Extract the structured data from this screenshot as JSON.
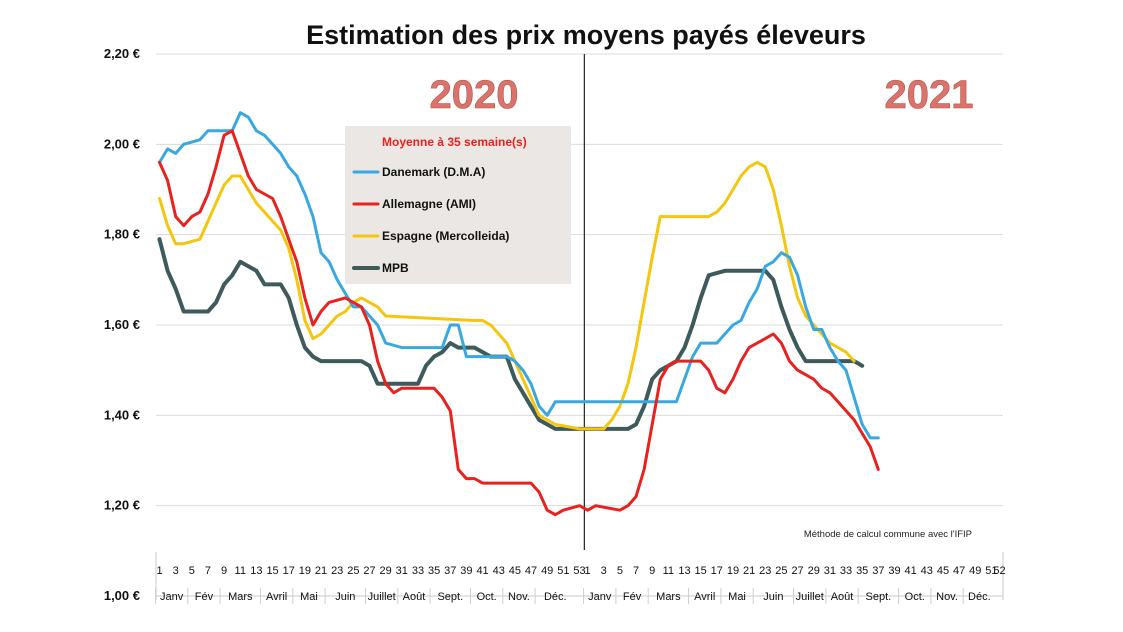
{
  "chart_data": {
    "type": "line",
    "title": "Estimation des prix moyens payés éleveurs",
    "year_labels": [
      "2020",
      "2021"
    ],
    "note": "Méthode de calcul commune avec l'IFIP",
    "legend": {
      "title": "Moyenne à  35 semaine(s)",
      "placement": "upper-left-center"
    },
    "y_ticks": [
      "1,00 €",
      "1,20 €",
      "1,40 €",
      "1,60 €",
      "1,80 €",
      "2,00 €",
      "2,20 €"
    ],
    "ylim": [
      1.0,
      2.2
    ],
    "grid": true,
    "week_ticks_2020": [
      "1",
      "3",
      "5",
      "7",
      "9",
      "11",
      "13",
      "15",
      "17",
      "19",
      "21",
      "23",
      "25",
      "27",
      "29",
      "31",
      "33",
      "35",
      "37",
      "39",
      "41",
      "43",
      "45",
      "47",
      "49",
      "51",
      "53"
    ],
    "week_ticks_2021": [
      "1",
      "3",
      "5",
      "7",
      "9",
      "11",
      "13",
      "15",
      "17",
      "19",
      "21",
      "23",
      "25",
      "27",
      "29",
      "31",
      "33",
      "35",
      "37",
      "39",
      "41",
      "43",
      "45",
      "47",
      "49",
      "51",
      "52"
    ],
    "months_2020": [
      "Janv",
      "Fév",
      "Mars",
      "Avril",
      "Mai",
      "Juin",
      "Juillet",
      "Août",
      "Sept.",
      "Oct.",
      "Nov.",
      "Déc."
    ],
    "months_2021": [
      "Janv",
      "Fév",
      "Mars",
      "Avril",
      "Mai",
      "Juin",
      "Juillet",
      "Août",
      "Sept.",
      "Oct.",
      "Nov.",
      "Déc."
    ],
    "x_unit": "week (2020 weeks 1–53, then 2021 weeks 1–52)",
    "series": [
      {
        "name": "Danemark (D.M.A)",
        "color": "#3aa8e0",
        "points": [
          [
            1,
            1.96
          ],
          [
            2,
            1.99
          ],
          [
            3,
            1.98
          ],
          [
            4,
            2.0
          ],
          [
            6,
            2.01
          ],
          [
            7,
            2.03
          ],
          [
            10,
            2.03
          ],
          [
            11,
            2.07
          ],
          [
            12,
            2.06
          ],
          [
            13,
            2.03
          ],
          [
            14,
            2.02
          ],
          [
            15,
            2.0
          ],
          [
            16,
            1.98
          ],
          [
            17,
            1.95
          ],
          [
            18,
            1.93
          ],
          [
            19,
            1.89
          ],
          [
            20,
            1.84
          ],
          [
            21,
            1.76
          ],
          [
            22,
            1.74
          ],
          [
            23,
            1.7
          ],
          [
            24,
            1.67
          ],
          [
            25,
            1.64
          ],
          [
            26,
            1.64
          ],
          [
            27,
            1.62
          ],
          [
            28,
            1.6
          ],
          [
            29,
            1.56
          ],
          [
            31,
            1.55
          ],
          [
            36,
            1.55
          ],
          [
            37,
            1.6
          ],
          [
            38,
            1.6
          ],
          [
            39,
            1.53
          ],
          [
            44,
            1.53
          ],
          [
            45,
            1.52
          ],
          [
            46,
            1.5
          ],
          [
            47,
            1.47
          ],
          [
            48,
            1.42
          ],
          [
            49,
            1.4
          ],
          [
            50,
            1.43
          ],
          [
            53,
            1.43
          ],
          [
            54,
            1.43
          ],
          [
            65,
            1.43
          ],
          [
            66,
            1.48
          ],
          [
            67,
            1.53
          ],
          [
            68,
            1.56
          ],
          [
            70,
            1.56
          ],
          [
            71,
            1.58
          ],
          [
            72,
            1.6
          ],
          [
            73,
            1.61
          ],
          [
            74,
            1.65
          ],
          [
            75,
            1.68
          ],
          [
            76,
            1.73
          ],
          [
            77,
            1.74
          ],
          [
            78,
            1.76
          ],
          [
            79,
            1.75
          ],
          [
            80,
            1.71
          ],
          [
            81,
            1.64
          ],
          [
            82,
            1.59
          ],
          [
            83,
            1.59
          ],
          [
            84,
            1.55
          ],
          [
            85,
            1.52
          ],
          [
            86,
            1.5
          ],
          [
            87,
            1.44
          ],
          [
            88,
            1.38
          ],
          [
            89,
            1.35
          ],
          [
            90,
            1.35
          ]
        ]
      },
      {
        "name": "Allemagne (AMI)",
        "color": "#e8221f",
        "points": [
          [
            1,
            1.96
          ],
          [
            2,
            1.92
          ],
          [
            3,
            1.84
          ],
          [
            4,
            1.82
          ],
          [
            5,
            1.84
          ],
          [
            6,
            1.85
          ],
          [
            7,
            1.89
          ],
          [
            8,
            1.95
          ],
          [
            9,
            2.02
          ],
          [
            10,
            2.03
          ],
          [
            11,
            1.98
          ],
          [
            12,
            1.93
          ],
          [
            13,
            1.9
          ],
          [
            14,
            1.89
          ],
          [
            15,
            1.88
          ],
          [
            16,
            1.84
          ],
          [
            17,
            1.79
          ],
          [
            18,
            1.74
          ],
          [
            19,
            1.66
          ],
          [
            20,
            1.6
          ],
          [
            21,
            1.63
          ],
          [
            22,
            1.65
          ],
          [
            24,
            1.66
          ],
          [
            25,
            1.65
          ],
          [
            26,
            1.64
          ],
          [
            27,
            1.6
          ],
          [
            28,
            1.52
          ],
          [
            29,
            1.47
          ],
          [
            30,
            1.45
          ],
          [
            31,
            1.46
          ],
          [
            35,
            1.46
          ],
          [
            36,
            1.44
          ],
          [
            37,
            1.41
          ],
          [
            38,
            1.28
          ],
          [
            39,
            1.26
          ],
          [
            40,
            1.26
          ],
          [
            41,
            1.25
          ],
          [
            47,
            1.25
          ],
          [
            48,
            1.23
          ],
          [
            49,
            1.19
          ],
          [
            50,
            1.18
          ],
          [
            51,
            1.19
          ],
          [
            53,
            1.2
          ],
          [
            54,
            1.19
          ],
          [
            55,
            1.2
          ],
          [
            58,
            1.19
          ],
          [
            59,
            1.2
          ],
          [
            60,
            1.22
          ],
          [
            61,
            1.28
          ],
          [
            62,
            1.38
          ],
          [
            63,
            1.48
          ],
          [
            64,
            1.51
          ],
          [
            65,
            1.52
          ],
          [
            68,
            1.52
          ],
          [
            69,
            1.5
          ],
          [
            70,
            1.46
          ],
          [
            71,
            1.45
          ],
          [
            72,
            1.48
          ],
          [
            73,
            1.52
          ],
          [
            74,
            1.55
          ],
          [
            75,
            1.56
          ],
          [
            76,
            1.57
          ],
          [
            77,
            1.58
          ],
          [
            78,
            1.56
          ],
          [
            79,
            1.52
          ],
          [
            80,
            1.5
          ],
          [
            82,
            1.48
          ],
          [
            83,
            1.46
          ],
          [
            84,
            1.45
          ],
          [
            85,
            1.43
          ],
          [
            86,
            1.41
          ],
          [
            87,
            1.39
          ],
          [
            88,
            1.36
          ],
          [
            89,
            1.33
          ],
          [
            90,
            1.28
          ]
        ]
      },
      {
        "name": "Espagne (Mercolleida)",
        "color": "#f4c60e",
        "points": [
          [
            1,
            1.88
          ],
          [
            2,
            1.82
          ],
          [
            3,
            1.78
          ],
          [
            4,
            1.78
          ],
          [
            6,
            1.79
          ],
          [
            7,
            1.83
          ],
          [
            8,
            1.87
          ],
          [
            9,
            1.91
          ],
          [
            10,
            1.93
          ],
          [
            11,
            1.93
          ],
          [
            12,
            1.9
          ],
          [
            13,
            1.87
          ],
          [
            15,
            1.83
          ],
          [
            16,
            1.81
          ],
          [
            17,
            1.77
          ],
          [
            18,
            1.7
          ],
          [
            19,
            1.61
          ],
          [
            20,
            1.57
          ],
          [
            21,
            1.58
          ],
          [
            22,
            1.6
          ],
          [
            23,
            1.62
          ],
          [
            24,
            1.63
          ],
          [
            25,
            1.65
          ],
          [
            26,
            1.66
          ],
          [
            27,
            1.65
          ],
          [
            28,
            1.64
          ],
          [
            29,
            1.62
          ],
          [
            40,
            1.61
          ],
          [
            41,
            1.61
          ],
          [
            42,
            1.6
          ],
          [
            43,
            1.58
          ],
          [
            44,
            1.56
          ],
          [
            45,
            1.52
          ],
          [
            46,
            1.48
          ],
          [
            47,
            1.44
          ],
          [
            48,
            1.4
          ],
          [
            49,
            1.39
          ],
          [
            50,
            1.38
          ],
          [
            53,
            1.37
          ],
          [
            54,
            1.37
          ],
          [
            56,
            1.37
          ],
          [
            57,
            1.39
          ],
          [
            58,
            1.42
          ],
          [
            59,
            1.47
          ],
          [
            60,
            1.55
          ],
          [
            61,
            1.65
          ],
          [
            62,
            1.75
          ],
          [
            63,
            1.84
          ],
          [
            68,
            1.84
          ],
          [
            69,
            1.84
          ],
          [
            70,
            1.85
          ],
          [
            71,
            1.87
          ],
          [
            72,
            1.9
          ],
          [
            73,
            1.93
          ],
          [
            74,
            1.95
          ],
          [
            75,
            1.96
          ],
          [
            76,
            1.95
          ],
          [
            77,
            1.9
          ],
          [
            78,
            1.82
          ],
          [
            79,
            1.73
          ],
          [
            80,
            1.66
          ],
          [
            81,
            1.62
          ],
          [
            82,
            1.6
          ],
          [
            83,
            1.58
          ],
          [
            84,
            1.56
          ],
          [
            85,
            1.55
          ],
          [
            86,
            1.54
          ],
          [
            87,
            1.52
          ]
        ]
      },
      {
        "name": "MPB",
        "color": "#3f5a5a",
        "points": [
          [
            1,
            1.79
          ],
          [
            2,
            1.72
          ],
          [
            3,
            1.68
          ],
          [
            4,
            1.63
          ],
          [
            5,
            1.63
          ],
          [
            7,
            1.63
          ],
          [
            8,
            1.65
          ],
          [
            9,
            1.69
          ],
          [
            10,
            1.71
          ],
          [
            11,
            1.74
          ],
          [
            12,
            1.73
          ],
          [
            13,
            1.72
          ],
          [
            14,
            1.69
          ],
          [
            16,
            1.69
          ],
          [
            17,
            1.66
          ],
          [
            18,
            1.6
          ],
          [
            19,
            1.55
          ],
          [
            20,
            1.53
          ],
          [
            21,
            1.52
          ],
          [
            26,
            1.52
          ],
          [
            27,
            1.51
          ],
          [
            28,
            1.47
          ],
          [
            33,
            1.47
          ],
          [
            34,
            1.51
          ],
          [
            35,
            1.53
          ],
          [
            36,
            1.54
          ],
          [
            37,
            1.56
          ],
          [
            38,
            1.55
          ],
          [
            40,
            1.55
          ],
          [
            41,
            1.54
          ],
          [
            42,
            1.53
          ],
          [
            44,
            1.53
          ],
          [
            45,
            1.48
          ],
          [
            46,
            1.45
          ],
          [
            47,
            1.42
          ],
          [
            48,
            1.39
          ],
          [
            49,
            1.38
          ],
          [
            50,
            1.37
          ],
          [
            53,
            1.37
          ],
          [
            54,
            1.37
          ],
          [
            56,
            1.37
          ],
          [
            59,
            1.37
          ],
          [
            60,
            1.38
          ],
          [
            61,
            1.42
          ],
          [
            62,
            1.48
          ],
          [
            63,
            1.5
          ],
          [
            64,
            1.51
          ],
          [
            65,
            1.52
          ],
          [
            66,
            1.55
          ],
          [
            67,
            1.6
          ],
          [
            68,
            1.66
          ],
          [
            69,
            1.71
          ],
          [
            71,
            1.72
          ],
          [
            72,
            1.72
          ],
          [
            74,
            1.72
          ],
          [
            75,
            1.72
          ],
          [
            76,
            1.72
          ],
          [
            77,
            1.7
          ],
          [
            78,
            1.64
          ],
          [
            79,
            1.59
          ],
          [
            80,
            1.55
          ],
          [
            81,
            1.52
          ],
          [
            87,
            1.52
          ],
          [
            88,
            1.51
          ]
        ]
      }
    ]
  }
}
